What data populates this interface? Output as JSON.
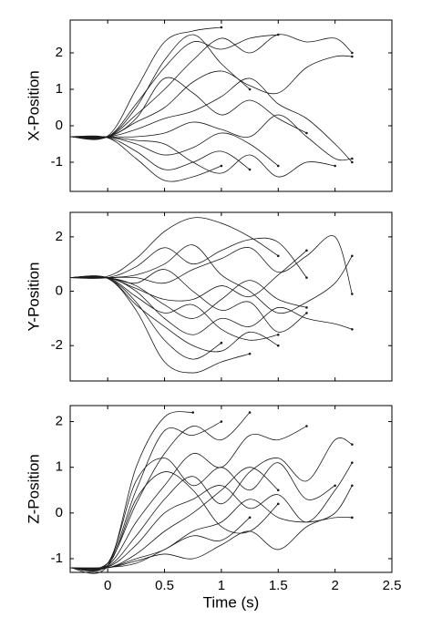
{
  "chart_data": [
    {
      "type": "line",
      "ylabel": "X-Position",
      "color": "#1a1a1a",
      "xtick_labels": false,
      "xlim": [
        -0.33,
        2.5
      ],
      "ylim": [
        -1.8,
        2.9
      ],
      "xticks": [
        0,
        0.5,
        1,
        1.5,
        2,
        2.5
      ],
      "yticks": [
        -1,
        0,
        1,
        2
      ],
      "x": [
        -0.33,
        0,
        0.25,
        0.5,
        0.75,
        1.0,
        1.25,
        1.5,
        1.75,
        2.0,
        2.15
      ],
      "series": [
        {
          "values": [
            -0.3,
            -0.28,
            1.0,
            2.3,
            2.6,
            2.7,
            null,
            null,
            null,
            null,
            null
          ]
        },
        {
          "values": [
            -0.3,
            -0.3,
            0.6,
            1.6,
            2.3,
            2.1,
            2.4,
            2.5,
            null,
            null,
            null
          ]
        },
        {
          "values": [
            -0.3,
            -0.3,
            0.3,
            1.0,
            1.8,
            2.4,
            2.0,
            2.5,
            2.3,
            2.4,
            2.0
          ]
        },
        {
          "values": [
            -0.3,
            -0.3,
            0.1,
            0.5,
            1.2,
            1.5,
            1.1,
            0.9,
            1.6,
            1.9,
            1.9
          ]
        },
        {
          "values": [
            -0.3,
            -0.3,
            -0.1,
            0.2,
            0.4,
            0.8,
            1.3,
            0.6,
            0.2,
            -0.5,
            -1.0
          ]
        },
        {
          "values": [
            -0.3,
            -0.3,
            -0.3,
            -0.2,
            0.1,
            -0.1,
            -0.3,
            0.3,
            -0.3,
            -0.9,
            -0.9
          ]
        },
        {
          "values": [
            -0.3,
            -0.31,
            -0.5,
            -0.8,
            -0.6,
            -0.2,
            -0.5,
            -1.1,
            null,
            null,
            null
          ]
        },
        {
          "values": [
            -0.3,
            -0.32,
            -0.7,
            -1.2,
            -1.0,
            -0.7,
            -1.2,
            null,
            null,
            null,
            null
          ]
        },
        {
          "values": [
            -0.3,
            -0.33,
            -0.9,
            -1.5,
            -1.4,
            -1.1,
            null,
            null,
            null,
            null,
            null
          ]
        },
        {
          "values": [
            -0.3,
            -0.3,
            0.2,
            1.3,
            0.9,
            0.3,
            0.7,
            0.2,
            -0.2,
            null,
            null
          ]
        },
        {
          "values": [
            -0.3,
            -0.3,
            0.5,
            1.8,
            2.5,
            1.7,
            1.0,
            null,
            null,
            null,
            null
          ]
        },
        {
          "values": [
            -0.3,
            -0.31,
            -0.4,
            -0.5,
            -1.0,
            -1.3,
            -0.8,
            -1.4,
            -1.0,
            -1.1,
            null
          ]
        }
      ]
    },
    {
      "type": "line",
      "ylabel": "Y-Position",
      "color": "#1a1a1a",
      "xtick_labels": false,
      "xlim": [
        -0.33,
        2.5
      ],
      "ylim": [
        -3.3,
        2.9
      ],
      "xticks": [
        0,
        0.5,
        1,
        1.5,
        2,
        2.5
      ],
      "yticks": [
        -2,
        0,
        2
      ],
      "x": [
        -0.33,
        0,
        0.25,
        0.5,
        0.75,
        1.0,
        1.25,
        1.5,
        1.75,
        2.0,
        2.15
      ],
      "series": [
        {
          "values": [
            0.5,
            0.55,
            1.2,
            2.2,
            2.7,
            2.5,
            2.0,
            1.3,
            null,
            null,
            null
          ]
        },
        {
          "values": [
            0.5,
            0.5,
            0.9,
            1.6,
            1.0,
            1.5,
            1.9,
            1.8,
            0.5,
            null,
            null
          ]
        },
        {
          "values": [
            0.5,
            0.5,
            0.5,
            0.3,
            0.8,
            1.2,
            1.6,
            0.7,
            1.3,
            2.0,
            -0.1
          ]
        },
        {
          "values": [
            0.5,
            0.5,
            0.2,
            -0.5,
            -1.0,
            -0.3,
            0.4,
            -0.3,
            -0.6,
            null,
            null
          ]
        },
        {
          "values": [
            0.5,
            0.5,
            0,
            -1.0,
            -1.6,
            -1.0,
            -1.3,
            -0.6,
            -1.0,
            -1.2,
            -1.4
          ]
        },
        {
          "values": [
            0.5,
            0.48,
            -0.4,
            -1.8,
            -2.5,
            -1.9,
            null,
            null,
            null,
            null,
            null
          ]
        },
        {
          "values": [
            0.5,
            0.47,
            -0.7,
            -2.6,
            -3.0,
            -2.6,
            -2.3,
            null,
            null,
            null,
            null
          ]
        },
        {
          "values": [
            0.5,
            0.5,
            -0.2,
            -0.8,
            -0.5,
            -1.4,
            -1.8,
            -1.6,
            null,
            null,
            null
          ]
        },
        {
          "values": [
            0.5,
            0.5,
            0.3,
            0.8,
            0.0,
            -0.7,
            -0.4,
            -1.5,
            -0.8,
            null,
            null
          ]
        },
        {
          "values": [
            0.5,
            0.49,
            -0.5,
            -1.3,
            -2.0,
            -2.2,
            -1.5,
            -2.0,
            null,
            null,
            null
          ]
        },
        {
          "values": [
            0.5,
            0.5,
            0.6,
            1.0,
            1.7,
            0.6,
            0.0,
            -0.8,
            -0.4,
            0.3,
            1.3
          ]
        },
        {
          "values": [
            0.5,
            0.5,
            0.1,
            -0.3,
            -0.3,
            0.2,
            -0.2,
            0.6,
            1.5,
            null,
            null
          ]
        }
      ]
    },
    {
      "type": "line",
      "ylabel": "Z-Position",
      "xlabel": "Time (s)",
      "color": "#1a1a1a",
      "xtick_labels": true,
      "xlim": [
        -0.33,
        2.5
      ],
      "ylim": [
        -1.3,
        2.35
      ],
      "xticks": [
        0,
        0.5,
        1,
        1.5,
        2,
        2.5
      ],
      "yticks": [
        -1,
        0,
        1,
        2
      ],
      "x": [
        -0.33,
        0,
        0.25,
        0.5,
        0.75,
        1.0,
        1.25,
        1.5,
        1.75,
        2.0,
        2.15
      ],
      "series": [
        {
          "values": [
            -1.2,
            -1.15,
            1.0,
            2.1,
            2.2,
            null,
            null,
            null,
            null,
            null,
            null
          ]
        },
        {
          "values": [
            -1.2,
            -1.1,
            0.5,
            1.8,
            1.7,
            2.0,
            null,
            null,
            null,
            null,
            null
          ]
        },
        {
          "values": [
            -1.2,
            -1.1,
            0.2,
            1.3,
            1.9,
            1.6,
            2.2,
            null,
            null,
            null,
            null
          ]
        },
        {
          "values": [
            -1.2,
            -1.15,
            -0.2,
            0.6,
            1.3,
            1.0,
            1.7,
            1.6,
            1.9,
            null,
            null
          ]
        },
        {
          "values": [
            -1.2,
            -1.17,
            -0.5,
            0.3,
            0.8,
            0.2,
            0.9,
            1.2,
            0.7,
            1.6,
            1.5
          ]
        },
        {
          "values": [
            -1.2,
            -1.18,
            -0.7,
            0.0,
            0.3,
            0.6,
            0.1,
            0.4,
            -0.2,
            0.5,
            1.1
          ]
        },
        {
          "values": [
            -1.2,
            -1.2,
            -0.9,
            -0.4,
            0.0,
            0.5,
            1.0,
            0.5,
            null,
            null,
            null
          ]
        },
        {
          "values": [
            -1.2,
            -1.2,
            -1.0,
            -0.8,
            -0.4,
            -0.2,
            0.3,
            -0.1,
            -0.2,
            -0.1,
            -0.1
          ]
        },
        {
          "values": [
            -1.2,
            -1.19,
            -1.1,
            -0.8,
            -0.5,
            -0.6,
            -0.1,
            null,
            null,
            null,
            null
          ]
        },
        {
          "values": [
            -1.2,
            -1.1,
            0.7,
            1.2,
            0.6,
            1.0,
            0.5,
            1.1,
            0.3,
            0.6,
            null
          ]
        },
        {
          "values": [
            -1.2,
            -1.15,
            0.3,
            0.9,
            0.5,
            -0.3,
            -0.4,
            0.2,
            null,
            null,
            null
          ]
        },
        {
          "values": [
            -1.2,
            -1.2,
            -1.05,
            -0.9,
            -1.0,
            -0.7,
            -0.4,
            -0.8,
            -0.3,
            0.0,
            0.6
          ]
        }
      ]
    }
  ]
}
